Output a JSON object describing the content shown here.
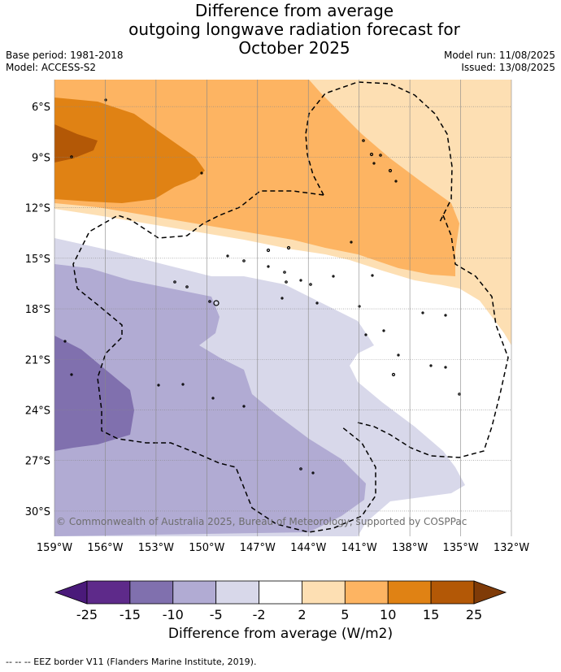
{
  "title": "Difference from average\noutgoing longwave radiation forecast for\nOctober 2025",
  "meta_left": {
    "base_period": "Base period: 1981-2018",
    "model": "Model: ACCESS-S2"
  },
  "meta_right": {
    "model_run": "Model run: 11/08/2025",
    "issued": "Issued: 13/08/2025"
  },
  "map": {
    "lat_labels": [
      "6°S",
      "9°S",
      "12°S",
      "15°S",
      "18°S",
      "21°S",
      "24°S",
      "27°S",
      "30°S"
    ],
    "lat_values": [
      6,
      9,
      12,
      15,
      18,
      21,
      24,
      27,
      30
    ],
    "lon_labels": [
      "159°W",
      "156°W",
      "153°W",
      "150°W",
      "147°W",
      "144°W",
      "141°W",
      "138°W",
      "135°W",
      "132°W"
    ],
    "lon_values": [
      159,
      156,
      153,
      150,
      147,
      144,
      141,
      138,
      135,
      132
    ],
    "lat_range": [
      4.4,
      31.5
    ],
    "lon_range": [
      159,
      132
    ],
    "grid": true,
    "copyright": "© Commonwealth of Australia 2025, Bureau of Meteorology, supported by COSPPac"
  },
  "colorbar": {
    "levels": [
      "-25",
      "-15",
      "-10",
      "-5",
      "-2",
      "2",
      "5",
      "10",
      "15",
      "25"
    ],
    "colors": [
      "#4a1a7a",
      "#5e2a8a",
      "#8070ae",
      "#b1abd3",
      "#d8d8ea",
      "#ffffff",
      "#fddfb3",
      "#fdb462",
      "#e08214",
      "#b35806",
      "#7f3b08"
    ],
    "label": "Difference from average (W/m2)"
  },
  "eez_note": "--  --  -- EEZ border V11 (Flanders Marine Institute, 2019)."
}
